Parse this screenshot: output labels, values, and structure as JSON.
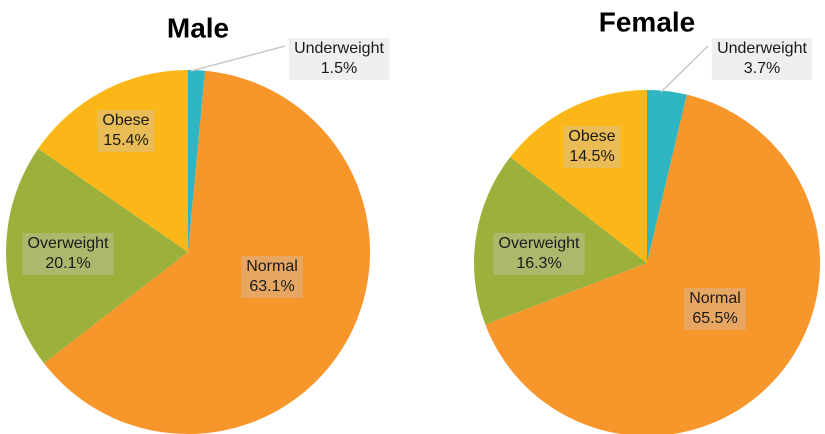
{
  "chart_data": [
    {
      "type": "pie",
      "title": "Male",
      "categories": [
        "Underweight",
        "Normal",
        "Overweight",
        "Obese"
      ],
      "values": [
        1.5,
        63.1,
        20.1,
        15.4
      ],
      "value_labels": [
        "1.5%",
        "63.1%",
        "20.1%",
        "15.4%"
      ],
      "colors": [
        "#2fb5c1",
        "#f7962b",
        "#9cb13c",
        "#fbb617"
      ]
    },
    {
      "type": "pie",
      "title": "Female",
      "categories": [
        "Underweight",
        "Normal",
        "Overweight",
        "Obese"
      ],
      "values": [
        3.7,
        65.5,
        16.3,
        14.5
      ],
      "value_labels": [
        "3.7%",
        "65.5%",
        "16.3%",
        "14.5%"
      ],
      "colors": [
        "#2fb5c1",
        "#f7962b",
        "#9cb13c",
        "#fbb617"
      ]
    }
  ]
}
